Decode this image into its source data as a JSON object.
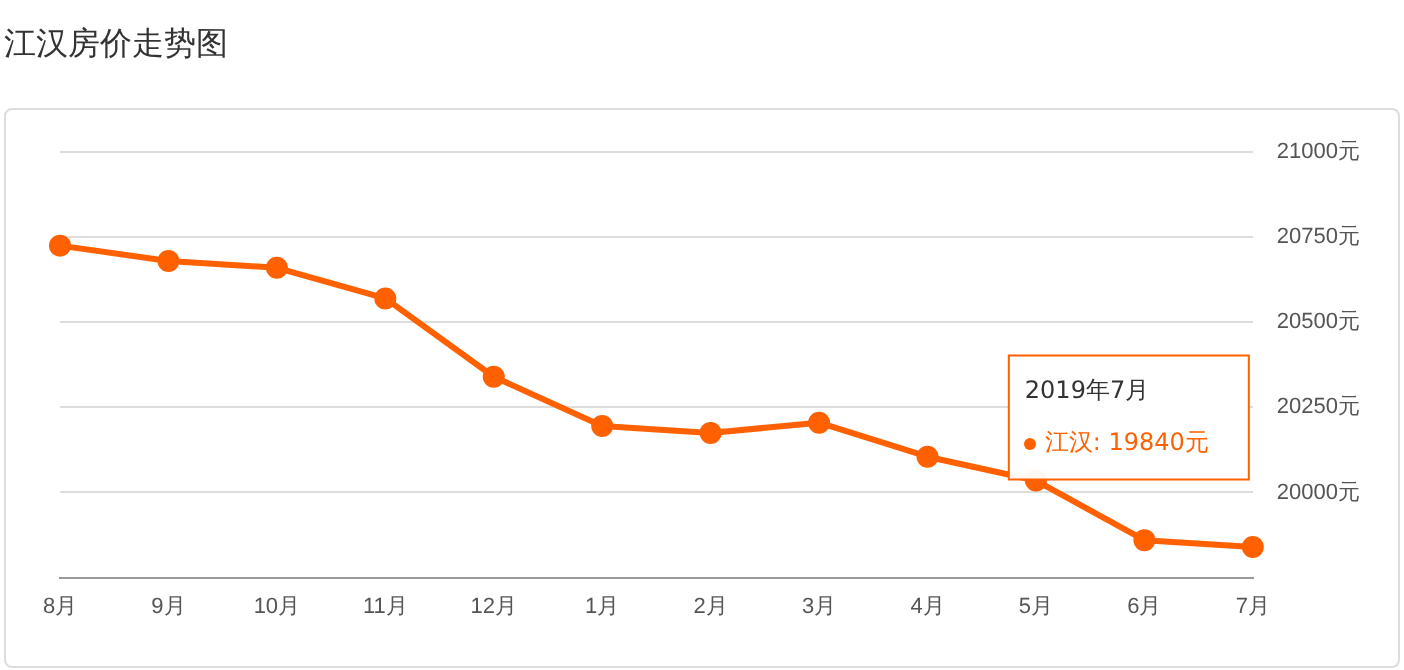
{
  "chart_data": {
    "type": "line",
    "title": "江汉房价走势图",
    "categories": [
      "8月",
      "9月",
      "10月",
      "11月",
      "12月",
      "1月",
      "2月",
      "3月",
      "4月",
      "5月",
      "6月",
      "7月"
    ],
    "series": [
      {
        "color": "#ff6000",
        "values": [
          20725,
          20680,
          20660,
          20570,
          20340,
          20195,
          20175,
          20205,
          20105,
          20035,
          19860,
          19840
        ]
      }
    ],
    "ylim": [
      19750,
      21000
    ],
    "yticks": [
      {
        "value": 19750,
        "label": null
      },
      {
        "value": 20000,
        "label": "20000元"
      },
      {
        "value": 20250,
        "label": "20250元"
      },
      {
        "value": 20500,
        "label": "20500元"
      },
      {
        "value": 20750,
        "label": "20750元"
      },
      {
        "value": 21000,
        "label": "21000元"
      }
    ],
    "annotations": [
      "2019年7月",
      "江汉: 19840元"
    ],
    "grid": "y",
    "legend": false,
    "marker": "circle",
    "line_style": "solid"
  }
}
